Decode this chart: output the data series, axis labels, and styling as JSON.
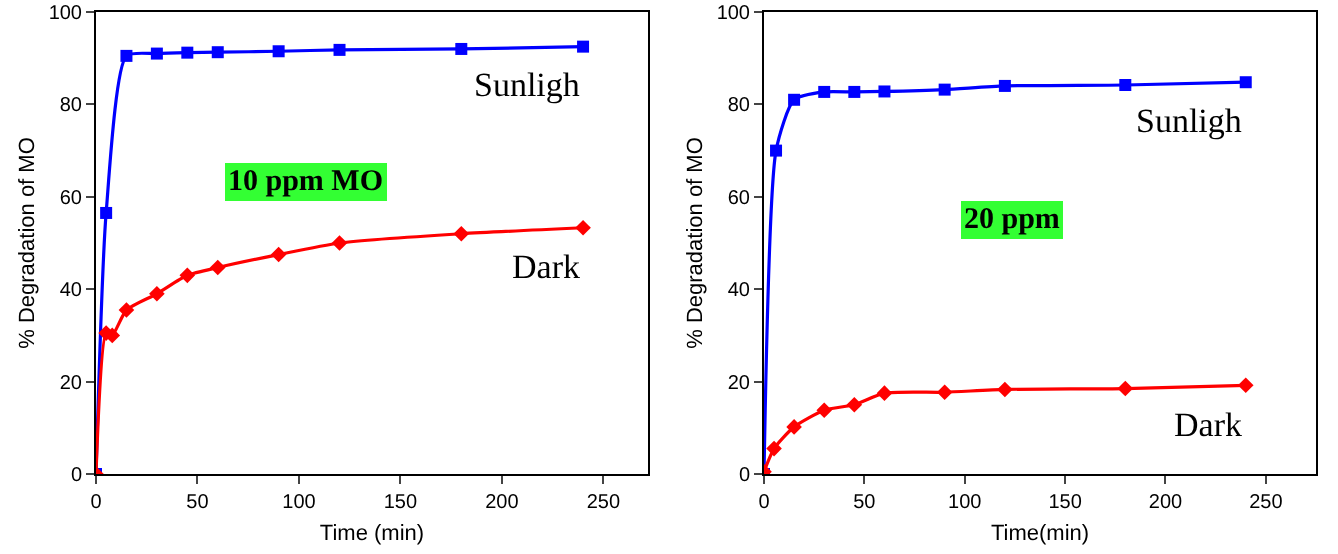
{
  "chart_data": [
    {
      "type": "line",
      "xlabel": "Time (min)",
      "ylabel": "% Degradation of MO",
      "xlim": [
        0,
        272
      ],
      "xticks": [
        0,
        50,
        100,
        150,
        200,
        250
      ],
      "ylim": [
        0,
        100
      ],
      "yticks": [
        0,
        20,
        40,
        60,
        80,
        100
      ],
      "grid": false,
      "legend": false,
      "line_style": "solid",
      "annotations": [
        "10 ppm MO"
      ],
      "series": [
        {
          "name": "Sunligh",
          "color": "#0000ff",
          "marker": "square",
          "x": [
            0,
            5,
            15,
            30,
            45,
            60,
            90,
            120,
            180,
            240
          ],
          "values": [
            0,
            56.5,
            90.5,
            91,
            91.2,
            91.3,
            91.5,
            91.8,
            92,
            92.5
          ]
        },
        {
          "name": "Dark",
          "color": "#ff0000",
          "marker": "diamond",
          "x": [
            0,
            5,
            8,
            15,
            30,
            45,
            60,
            90,
            120,
            180,
            240
          ],
          "values": [
            0,
            30.5,
            30,
            35.5,
            39,
            43,
            44.7,
            47.5,
            50,
            52,
            53.3
          ]
        }
      ]
    },
    {
      "type": "line",
      "xlabel": "Time(min)",
      "ylabel": "% Degradation of MO",
      "xlim": [
        0,
        275
      ],
      "xticks": [
        0,
        50,
        100,
        150,
        200,
        250
      ],
      "ylim": [
        0,
        100
      ],
      "yticks": [
        0,
        20,
        40,
        60,
        80,
        100
      ],
      "grid": false,
      "legend": false,
      "line_style": "solid",
      "annotations": [
        "20 ppm"
      ],
      "series": [
        {
          "name": "Sunligh",
          "color": "#0000ff",
          "marker": "square",
          "x": [
            0,
            6,
            15,
            30,
            45,
            60,
            90,
            120,
            180,
            240
          ],
          "values": [
            0,
            70,
            81,
            82.7,
            82.7,
            82.8,
            83.2,
            84,
            84.2,
            84.8
          ]
        },
        {
          "name": "Dark",
          "color": "#ff0000",
          "marker": "diamond",
          "x": [
            0,
            5,
            15,
            30,
            45,
            60,
            90,
            120,
            180,
            240
          ],
          "values": [
            0.5,
            5.5,
            10.2,
            13.8,
            15,
            17.5,
            17.7,
            18.3,
            18.5,
            19.2
          ]
        }
      ]
    }
  ]
}
